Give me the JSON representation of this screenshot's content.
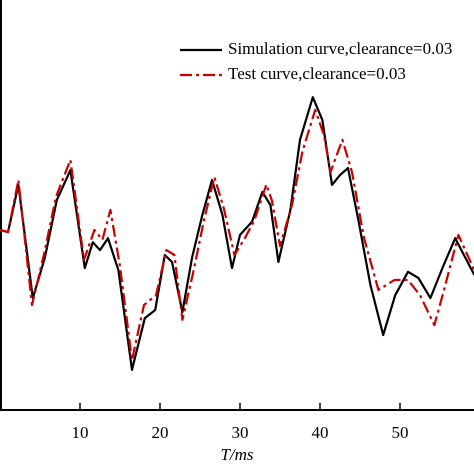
{
  "chart_data": {
    "type": "line",
    "xlabel": "T/ms",
    "xlim": [
      0,
      59.25
    ],
    "xticks": [
      10,
      20,
      30,
      40,
      50
    ],
    "ylim": [
      0,
      100
    ],
    "legend": "top-right",
    "series": [
      {
        "name": "Simulation curve,clearance=0.03",
        "color": "#000000",
        "style": "solid",
        "x": [
          0,
          1,
          2.3,
          4.1,
          5.6,
          7.1,
          8.8,
          10.6,
          11.6,
          12.5,
          13.5,
          14.8,
          16.5,
          18.1,
          19.4,
          20.6,
          21.5,
          22.8,
          24,
          25.3,
          26.5,
          27.8,
          29,
          30,
          31.5,
          32.8,
          33.8,
          34.8,
          36.3,
          37.5,
          39.1,
          40.3,
          41.5,
          42.5,
          43.5,
          44.8,
          46.3,
          47.9,
          49.4,
          51,
          52.3,
          53.8,
          55.3,
          56.9,
          59.3
        ],
        "values": [
          43.9,
          43.4,
          54.9,
          27.3,
          37.1,
          51.2,
          58.5,
          34.6,
          40.9,
          39.0,
          41.9,
          34.1,
          9.8,
          22.4,
          24.4,
          37.8,
          36.1,
          23.9,
          37.1,
          47.6,
          56.1,
          47.6,
          34.6,
          42.7,
          45.9,
          53.2,
          50.0,
          36.1,
          48.8,
          65.9,
          76.3,
          70.7,
          54.9,
          57.3,
          59.0,
          46.3,
          30.5,
          18.3,
          28.0,
          33.7,
          32.2,
          27.3,
          34.6,
          41.9,
          32.9
        ]
      },
      {
        "name": "Test curve,clearance=0.03",
        "color": "#cc0000",
        "style": "dashdot",
        "x": [
          0,
          1,
          2.3,
          4,
          5.5,
          7,
          8.8,
          10.5,
          11.8,
          12.8,
          13.8,
          15,
          16.5,
          18,
          19.5,
          20.8,
          21.8,
          22.8,
          24.2,
          25.5,
          26.8,
          28,
          29.3,
          30.5,
          31.8,
          33.3,
          34,
          35,
          36.5,
          37.8,
          39.4,
          40.5,
          41.3,
          42.8,
          44,
          45.5,
          47.3,
          49.3,
          51,
          52.5,
          54.3,
          55.5,
          57.3,
          59.3
        ],
        "values": [
          43.9,
          43.4,
          56.1,
          25.6,
          38,
          52,
          61,
          36.6,
          43.9,
          41.5,
          48.8,
          35,
          12.2,
          25.6,
          28,
          39,
          37.8,
          22.0,
          34,
          46.3,
          56.8,
          49,
          37.8,
          41.5,
          46.3,
          55,
          51,
          40,
          50,
          63,
          73.2,
          67,
          58,
          65.9,
          58,
          42,
          29.3,
          31.7,
          31.7,
          28,
          20.7,
          29.3,
          42.7,
          34
        ]
      }
    ]
  }
}
